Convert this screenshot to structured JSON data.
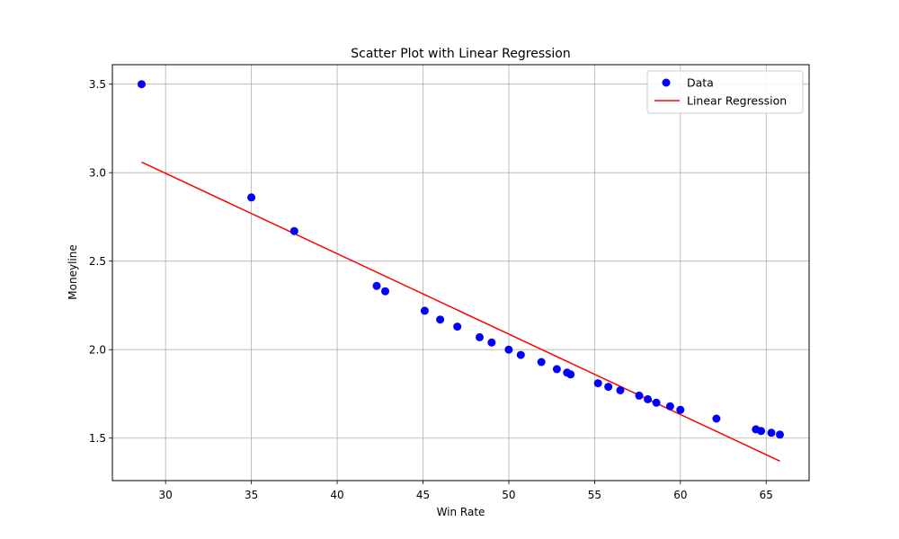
{
  "chart_data": {
    "type": "scatter",
    "title": "Scatter Plot with Linear Regression",
    "xlabel": "Win Rate",
    "ylabel": "Moneyline",
    "xlim": [
      26.9,
      67.5
    ],
    "ylim": [
      1.26,
      3.61
    ],
    "x_ticks": [
      30,
      35,
      40,
      45,
      50,
      55,
      60,
      65
    ],
    "y_ticks": [
      1.5,
      2.0,
      2.5,
      3.0,
      3.5
    ],
    "x_tick_labels": [
      "30",
      "35",
      "40",
      "45",
      "50",
      "55",
      "60",
      "65"
    ],
    "y_tick_labels": [
      "1.5",
      "2.0",
      "2.5",
      "3.0",
      "3.5"
    ],
    "grid": true,
    "legend_position": "top-right",
    "series": [
      {
        "name": "Data",
        "kind": "scatter",
        "color": "#0000ff",
        "points": [
          [
            28.6,
            3.5
          ],
          [
            35.0,
            2.86
          ],
          [
            37.5,
            2.67
          ],
          [
            42.3,
            2.36
          ],
          [
            42.8,
            2.33
          ],
          [
            45.1,
            2.22
          ],
          [
            46.0,
            2.17
          ],
          [
            47.0,
            2.13
          ],
          [
            48.3,
            2.07
          ],
          [
            49.0,
            2.04
          ],
          [
            50.0,
            2.0
          ],
          [
            50.7,
            1.97
          ],
          [
            51.9,
            1.93
          ],
          [
            52.8,
            1.89
          ],
          [
            53.4,
            1.87
          ],
          [
            53.6,
            1.86
          ],
          [
            55.2,
            1.81
          ],
          [
            55.8,
            1.79
          ],
          [
            56.5,
            1.77
          ],
          [
            57.6,
            1.74
          ],
          [
            58.1,
            1.72
          ],
          [
            58.6,
            1.7
          ],
          [
            59.4,
            1.68
          ],
          [
            60.0,
            1.66
          ],
          [
            62.1,
            1.61
          ],
          [
            64.4,
            1.55
          ],
          [
            64.7,
            1.54
          ],
          [
            65.3,
            1.53
          ],
          [
            65.8,
            1.52
          ]
        ]
      },
      {
        "name": "Linear Regression",
        "kind": "line",
        "color": "#ff0000",
        "points": [
          [
            28.6,
            3.06
          ],
          [
            65.8,
            1.37
          ]
        ]
      }
    ]
  }
}
